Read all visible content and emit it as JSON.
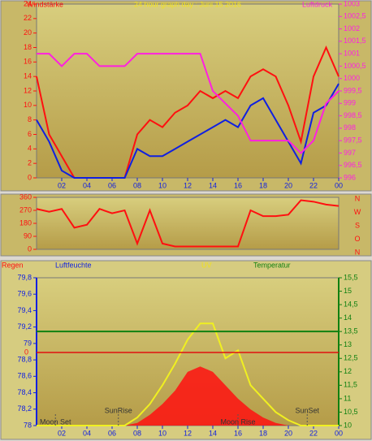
{
  "chart_data": [
    {
      "type": "line",
      "title": "24 hour graph day : Juni 15 2016",
      "ylabel": "Windstärke",
      "y2label": "Luftdruck",
      "x": [
        0,
        1,
        2,
        3,
        4,
        5,
        6,
        7,
        8,
        9,
        10,
        11,
        12,
        13,
        14,
        15,
        16,
        17,
        18,
        19,
        20,
        21,
        22,
        23,
        24
      ],
      "xlim": [
        0,
        24
      ],
      "xticks": [
        {
          "value": 2,
          "label": "02"
        },
        {
          "value": 4,
          "label": "04"
        },
        {
          "value": 6,
          "label": "06"
        },
        {
          "value": 8,
          "label": "08"
        },
        10,
        12,
        14,
        16,
        18,
        20,
        22,
        {
          "value": 24,
          "label": "00"
        }
      ],
      "ylim": [
        0,
        24
      ],
      "yticks": [
        0,
        2,
        4,
        6,
        8,
        10,
        12,
        14,
        16,
        18,
        20,
        22,
        24
      ],
      "y2lim": [
        996,
        1003
      ],
      "y2ticks": [
        996,
        {
          "value": 996.5,
          "label": "996,5"
        },
        997,
        {
          "value": 997.5,
          "label": "997,5"
        },
        998,
        {
          "value": 998.5,
          "label": "998,5"
        },
        999,
        {
          "value": 999.5,
          "label": "999,5"
        },
        1000,
        {
          "value": 1000.5,
          "label": "1000,5"
        },
        1001,
        {
          "value": 1001.5,
          "label": "1001,5"
        },
        1002,
        {
          "value": 1002.5,
          "label": "1002,5"
        },
        1003
      ],
      "series": [
        {
          "color": "#ff1010",
          "values": [
            14,
            6,
            3,
            0,
            0,
            0,
            0,
            0,
            6,
            8,
            7,
            9,
            10,
            12,
            11,
            12,
            11,
            14,
            15,
            14,
            10,
            5,
            14,
            18,
            14
          ]
        },
        {
          "color": "#1020e0",
          "values": [
            8,
            5,
            1,
            0,
            0,
            0,
            0,
            0,
            4,
            3,
            3,
            4,
            5,
            6,
            7,
            8,
            7,
            10,
            11,
            8,
            5,
            2,
            9,
            10,
            13
          ]
        },
        {
          "color": "#ff20e0",
          "axis": "y2",
          "values": [
            1001,
            1001,
            1000.5,
            1001,
            1001,
            1000.5,
            1000.5,
            1000.5,
            1001,
            1001,
            1001,
            1001,
            1001,
            1001,
            999.5,
            999,
            998.5,
            997.5,
            997.5,
            997.5,
            997.5,
            997,
            997.5,
            999,
            999.5
          ]
        }
      ]
    },
    {
      "type": "line",
      "direction_labels": [
        "N",
        "W",
        "S",
        "O",
        "N"
      ],
      "x": [
        0,
        1,
        2,
        3,
        4,
        5,
        6,
        7,
        8,
        9,
        10,
        11,
        12,
        13,
        14,
        15,
        16,
        17,
        18,
        19,
        20,
        21,
        22,
        23,
        24
      ],
      "xlim": [
        0,
        24
      ],
      "ylim": [
        0,
        360
      ],
      "yticks": [
        0,
        90,
        180,
        270,
        360
      ],
      "series": [
        {
          "color": "#ff1010",
          "values": [
            280,
            260,
            280,
            150,
            170,
            280,
            250,
            270,
            40,
            270,
            40,
            20,
            20,
            20,
            20,
            20,
            20,
            270,
            230,
            230,
            240,
            340,
            330,
            310,
            300
          ]
        }
      ]
    },
    {
      "type": "line",
      "labels": [
        {
          "text": "Regen",
          "color": "#ff1010"
        },
        {
          "text": "Luftfeuchte",
          "color": "#1020e0"
        },
        {
          "text": "UV",
          "color": "#f0e020"
        },
        {
          "text": "Temperatur",
          "color": "#108010"
        }
      ],
      "annotations": [
        {
          "text": "Moon Set",
          "x": 1.5
        },
        {
          "text": "SunRise",
          "x": 6.5
        },
        {
          "text": "Moon Rise",
          "x": 16
        },
        {
          "text": "SunSet",
          "x": 21.5
        }
      ],
      "rain_label": "0",
      "x": [
        0,
        1,
        2,
        3,
        4,
        5,
        6,
        7,
        8,
        9,
        10,
        11,
        12,
        13,
        14,
        15,
        16,
        17,
        18,
        19,
        20,
        21,
        22,
        23,
        24
      ],
      "xlim": [
        0,
        24
      ],
      "xticks": [
        {
          "value": 2,
          "label": "02"
        },
        {
          "value": 4,
          "label": "04"
        },
        {
          "value": 6,
          "label": "06"
        },
        {
          "value": 8,
          "label": "08"
        },
        10,
        12,
        14,
        16,
        18,
        20,
        22,
        {
          "value": 24,
          "label": "00"
        }
      ],
      "ylim": [
        78,
        79.8
      ],
      "yticks": [
        78,
        {
          "value": 78.2,
          "label": "78,2"
        },
        {
          "value": 78.4,
          "label": "78,4"
        },
        {
          "value": 78.6,
          "label": "78,6"
        },
        {
          "value": 78.8,
          "label": "78,8"
        },
        79,
        {
          "value": 79.2,
          "label": "79,2"
        },
        {
          "value": 79.4,
          "label": "79,4"
        },
        {
          "value": 79.6,
          "label": "79,6"
        },
        {
          "value": 79.8,
          "label": "79,8"
        }
      ],
      "y2lim": [
        10,
        15.5
      ],
      "y2ticks": [
        10,
        {
          "value": 10.5,
          "label": "10,5"
        },
        11,
        {
          "value": 11.5,
          "label": "11,5"
        },
        12,
        {
          "value": 12.5,
          "label": "12,5"
        },
        13,
        {
          "value": 13.5,
          "label": "13,5"
        },
        14,
        {
          "value": 14.5,
          "label": "14,5"
        },
        15,
        {
          "value": 15.5,
          "label": "15,5"
        }
      ],
      "series": [
        {
          "color": "#ff1010",
          "axis": "y2",
          "area": true,
          "values": [
            10,
            10,
            10,
            10,
            10,
            10,
            10,
            10,
            10.1,
            10.4,
            10.8,
            11.3,
            12,
            12.2,
            12,
            11.5,
            11,
            10.6,
            10.3,
            10.1,
            10,
            10,
            10,
            10,
            10
          ]
        },
        {
          "name": "UV",
          "color": "#f0f020",
          "axis": "y2",
          "values": [
            10,
            10,
            10,
            10,
            10,
            10,
            10,
            10,
            10.3,
            10.8,
            11.5,
            12.3,
            13.2,
            13.8,
            13.8,
            12.5,
            12.8,
            11.5,
            11,
            10.5,
            10.2,
            10,
            10,
            10,
            10
          ]
        },
        {
          "name": "Temperatur",
          "color": "#108010",
          "axis": "y2",
          "values": [
            13.5,
            13.5,
            13.5,
            13.5,
            13.5,
            13.5,
            13.5,
            13.5,
            13.5,
            13.5,
            13.5,
            13.5,
            13.5,
            13.5,
            13.5,
            13.5,
            13.5,
            13.5,
            13.5,
            13.5,
            13.5,
            13.5,
            13.5,
            13.5,
            13.5
          ]
        }
      ]
    }
  ]
}
